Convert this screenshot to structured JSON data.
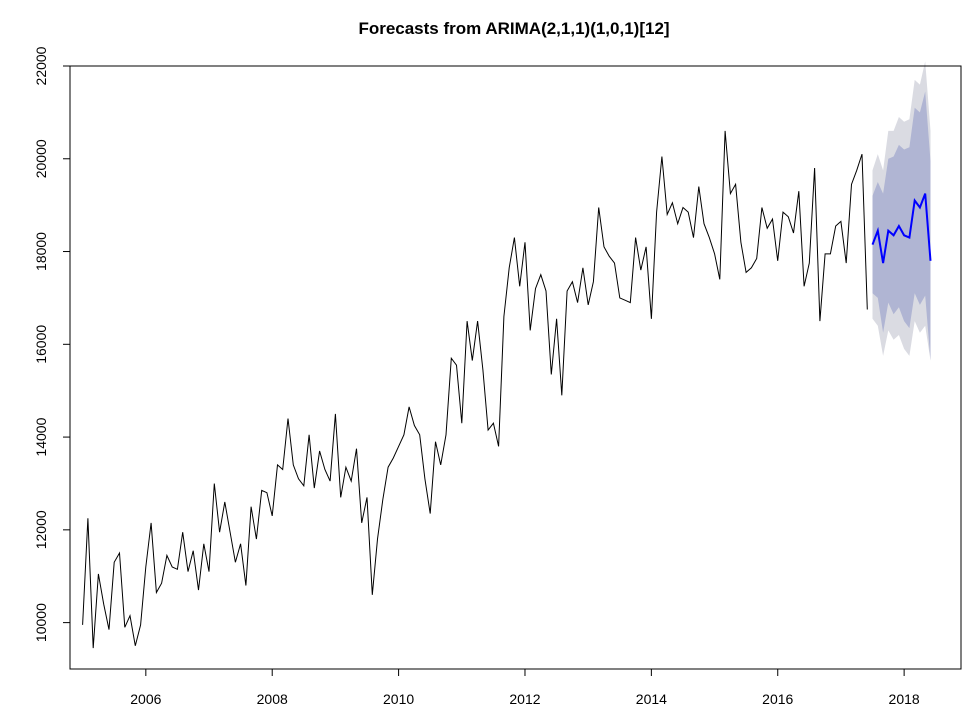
{
  "chart_data": {
    "type": "line",
    "title": "Forecasts from ARIMA(2,1,1)(1,0,1)[12]",
    "xlabel": "",
    "ylabel": "",
    "xlim": [
      2004.8,
      2018.9
    ],
    "ylim": [
      9000,
      22000
    ],
    "x_ticks": [
      2006,
      2008,
      2010,
      2012,
      2014,
      2016,
      2018
    ],
    "x_tick_labels": [
      "2006",
      "2008",
      "2010",
      "2012",
      "2014",
      "2016",
      "2018"
    ],
    "y_ticks": [
      10000,
      12000,
      14000,
      16000,
      18000,
      20000,
      22000
    ],
    "y_tick_labels": [
      "10000",
      "12000",
      "14000",
      "16000",
      "18000",
      "20000",
      "22000"
    ],
    "grid": false,
    "legend": "none",
    "colors": {
      "observed": "#000000",
      "forecast": "#0000ff",
      "band80": "#b0b5d3",
      "band95": "#dadbe2"
    },
    "observed": {
      "start": 2005.0,
      "frequency": 12,
      "values": [
        9950,
        12250,
        9450,
        11050,
        10400,
        9850,
        11300,
        11500,
        9900,
        10150,
        9500,
        9950,
        11200,
        12150,
        10650,
        10850,
        11450,
        11200,
        11150,
        11950,
        11100,
        11550,
        10700,
        11700,
        11100,
        13000,
        11950,
        12600,
        11950,
        11300,
        11700,
        10800,
        12500,
        11800,
        12850,
        12800,
        12300,
        13400,
        13300,
        14400,
        13400,
        13100,
        12950,
        14050,
        12900,
        13700,
        13300,
        13050,
        14500,
        12700,
        13350,
        13050,
        13750,
        12150,
        12700,
        10600,
        11800,
        12650,
        13350,
        13550,
        13800,
        14050,
        14650,
        14250,
        14050,
        13100,
        12350,
        13900,
        13400,
        14050,
        15700,
        15550,
        14300,
        16500,
        15650,
        16500,
        15450,
        14150,
        14300,
        13800,
        16600,
        17650,
        18300,
        17250,
        18200,
        16300,
        17200,
        17500,
        17150,
        15350,
        16550,
        14900,
        17150,
        17350,
        16900,
        17650,
        16850,
        17350,
        18950,
        18100,
        17900,
        17750,
        17000,
        16950,
        16900,
        18300,
        17600,
        18100,
        16550,
        18850,
        20050,
        18800,
        19050,
        18600,
        18950,
        18850,
        18300,
        19400,
        18600,
        18300,
        17950,
        17400,
        20600,
        19250,
        19450,
        18200,
        17550,
        17650,
        17850,
        18950,
        18500,
        18700,
        17800,
        18850,
        18750,
        18400,
        19300,
        17250,
        17750,
        19800,
        16500,
        17950,
        17950,
        18550,
        18650,
        17750,
        19450,
        19750,
        20100,
        16750
      ]
    },
    "forecast": {
      "start": 2017.5,
      "frequency": 12,
      "mean": [
        18150,
        18450,
        17750,
        18450,
        18350,
        18550,
        18350,
        18300,
        19100,
        18950,
        19250,
        17800
      ],
      "lo80": [
        17100,
        17000,
        16250,
        16900,
        16650,
        16800,
        16500,
        16350,
        17100,
        16850,
        17050,
        15650
      ],
      "hi80": [
        19200,
        19500,
        19250,
        20000,
        20050,
        20300,
        20200,
        20250,
        21100,
        21000,
        21450,
        19950
      ],
      "lo95": [
        16550,
        16400,
        15750,
        16300,
        16100,
        16200,
        15900,
        15750,
        16500,
        16250,
        16400,
        15650
      ],
      "hi95": [
        19750,
        20100,
        19750,
        20600,
        20600,
        20900,
        20800,
        20850,
        21700,
        21600,
        22100,
        20600
      ]
    }
  }
}
